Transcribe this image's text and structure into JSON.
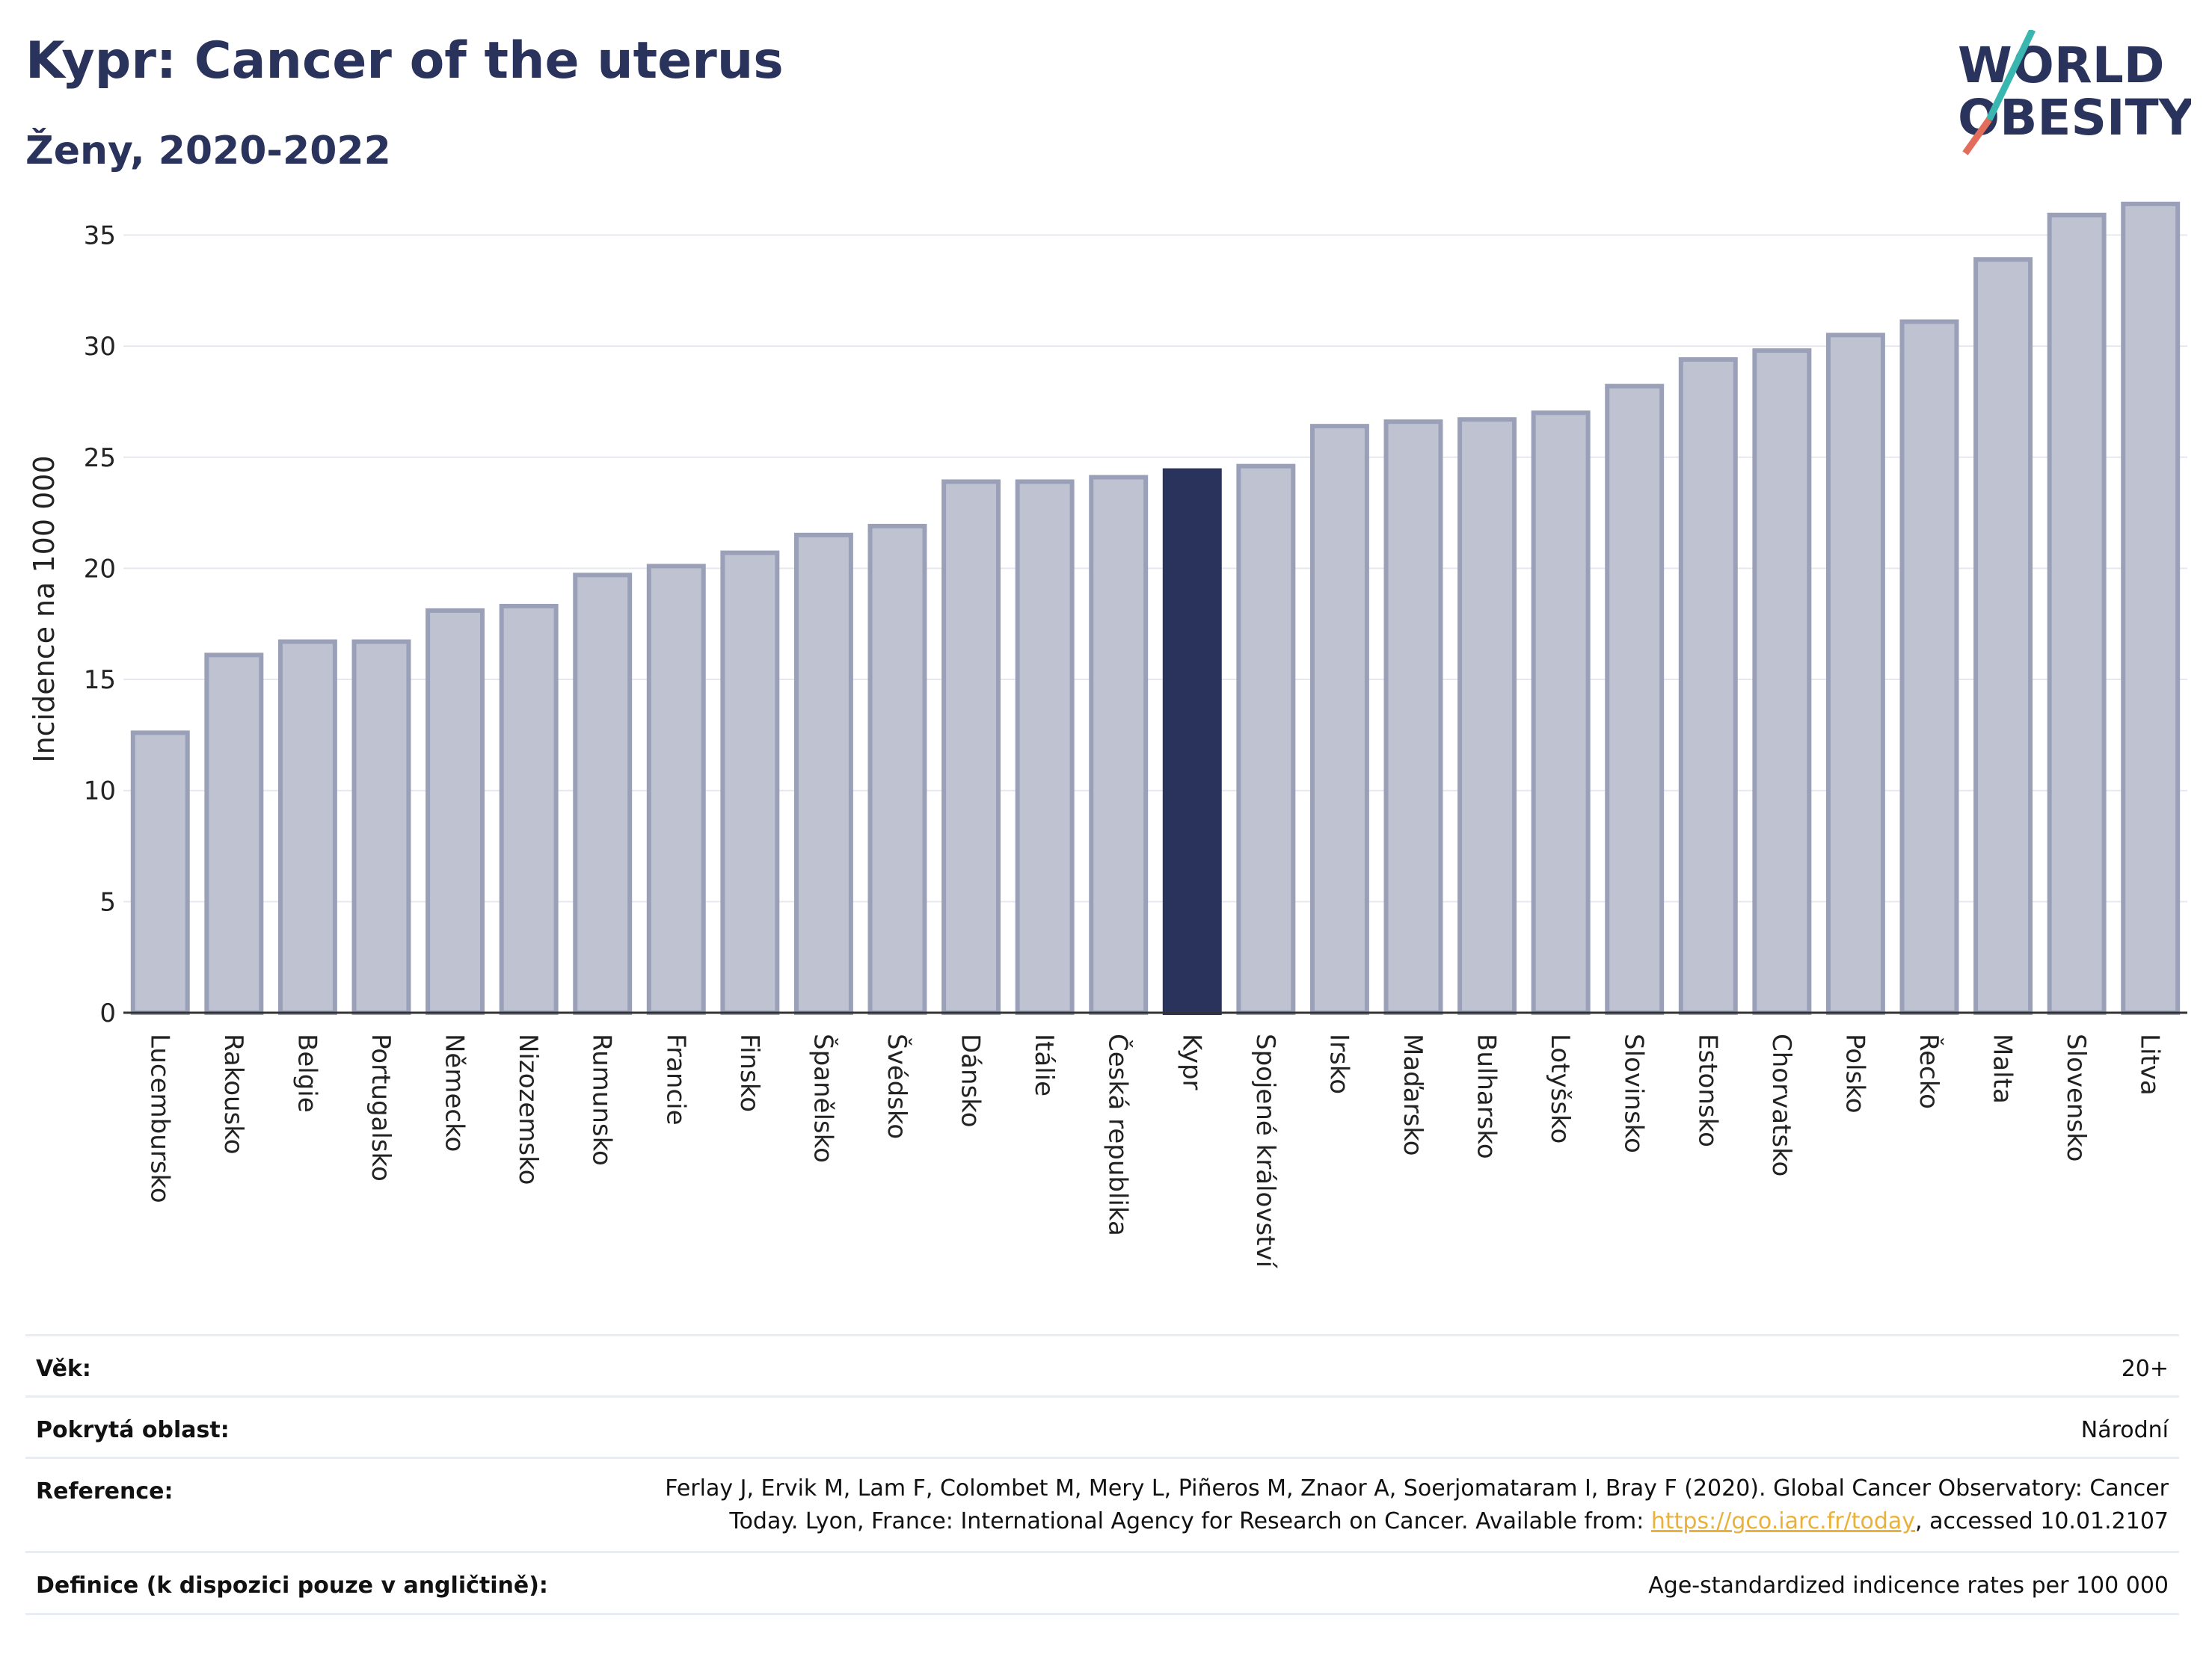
{
  "header": {
    "title": "Kypr: Cancer of the uterus",
    "subtitle": "Ženy, 2020-2022",
    "logo_line1": "WORLD",
    "logo_line2": "OBESITY"
  },
  "colors": {
    "title": "#29335c",
    "bar": "#bfc3d1",
    "bar_border": "#9aa0b8",
    "highlight": "#29335c",
    "grid": "#e6e8ef",
    "logo_teal": "#3ab6b0",
    "logo_red": "#e26d5a",
    "link": "#e9b13a"
  },
  "chart_data": {
    "type": "bar",
    "title": "Kypr: Cancer of the uterus",
    "subtitle": "Ženy, 2020-2022",
    "ylabel": "Incidence na 100 000",
    "xlabel": "",
    "ylim": [
      0,
      37
    ],
    "yticks": [
      0,
      5,
      10,
      15,
      20,
      25,
      30,
      35
    ],
    "grid": true,
    "highlight_category": "Kypr",
    "categories": [
      "Lucembursko",
      "Rakousko",
      "Belgie",
      "Portugalsko",
      "Německo",
      "Nizozemsko",
      "Rumunsko",
      "Francie",
      "Finsko",
      "Španělsko",
      "Švédsko",
      "Dánsko",
      "Itálie",
      "Česká republika",
      "Kypr",
      "Spojené království",
      "Irsko",
      "Maďarsko",
      "Bulharsko",
      "Lotyšsko",
      "Slovinsko",
      "Estonsko",
      "Chorvatsko",
      "Polsko",
      "Řecko",
      "Malta",
      "Slovensko",
      "Litva"
    ],
    "values": [
      12.6,
      16.1,
      16.7,
      16.7,
      18.1,
      18.3,
      19.7,
      20.1,
      20.7,
      21.5,
      21.9,
      23.9,
      23.9,
      24.1,
      24.4,
      24.6,
      26.4,
      26.6,
      26.7,
      27.0,
      28.2,
      29.4,
      29.8,
      30.5,
      31.1,
      33.9,
      35.9,
      36.4
    ]
  },
  "meta": {
    "age_label": "Věk:",
    "age_value": "20+",
    "area_label": "Pokrytá oblast:",
    "area_value": "Národní",
    "reference_label": "Reference:",
    "reference_line1": "Ferlay J, Ervik M, Lam F, Colombet M, Mery L, Piñeros M, Znaor A, Soerjomataram I, Bray F (2020). Global Cancer Observatory: Cancer",
    "reference_line2_pre": "Today. Lyon, France: International Agency for Research on Cancer. Available from: ",
    "reference_link": "https://gco.iarc.fr/today",
    "reference_line2_post": ", accessed 10.01.2107",
    "definition_label": "Definice (k dispozici pouze v angličtině):",
    "definition_value": "Age-standardized indicence rates per 100 000"
  }
}
